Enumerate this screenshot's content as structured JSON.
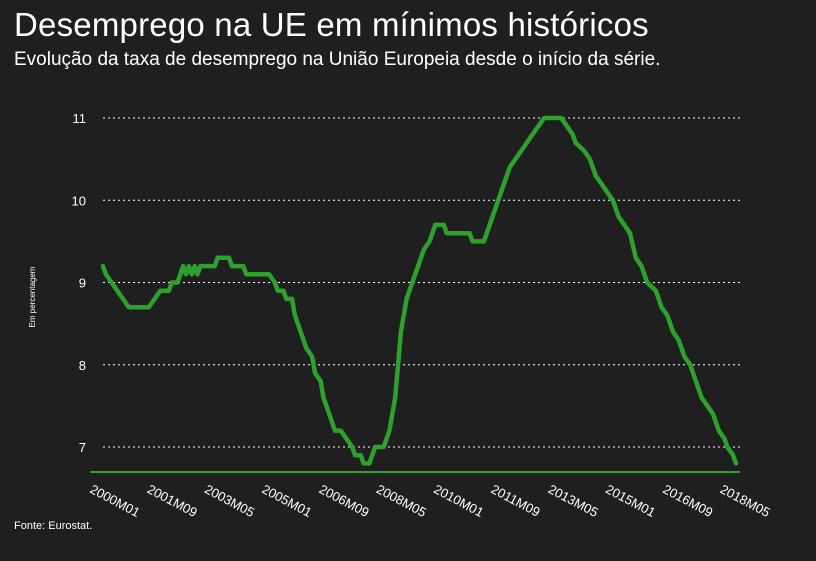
{
  "header": {
    "title": "Desemprego na UE em mínimos históricos",
    "subtitle": "Evolução da taxa de desemprego na União Europeia desde o início da série."
  },
  "footer": {
    "source": "Fonte: Eurostat."
  },
  "colors": {
    "background": "#1f1f1f",
    "line": "#2ea02e",
    "grid": "#ffffff",
    "text": "#ffffff"
  },
  "chart_data": {
    "type": "line",
    "title": "Desemprego na UE em mínimos históricos",
    "subtitle": "Evolução da taxa de desemprego na União Europeia desde o início da série.",
    "ylabel": "Em percentagem",
    "xlabel": "",
    "ylim": [
      6.7,
      11.1
    ],
    "yticks": [
      7,
      8,
      9,
      10,
      11
    ],
    "grid": "horizontal dotted",
    "xticks": [
      "2000M01",
      "2001M09",
      "2003M05",
      "2005M01",
      "2006M09",
      "2008M05",
      "2010M01",
      "2011M09",
      "2013M05",
      "2015M01",
      "2016M09",
      "2018M05"
    ],
    "x_start": "2000M01",
    "x_end": "2018M06",
    "series": [
      {
        "name": "",
        "points": [
          [
            "2000M01",
            9.2
          ],
          [
            "2000M02",
            9.1
          ],
          [
            "2000M04",
            9.0
          ],
          [
            "2000M06",
            8.9
          ],
          [
            "2000M08",
            8.8
          ],
          [
            "2000M10",
            8.7
          ],
          [
            "2001M01",
            8.7
          ],
          [
            "2001M05",
            8.7
          ],
          [
            "2001M07",
            8.8
          ],
          [
            "2001M09",
            8.9
          ],
          [
            "2001M12",
            8.9
          ],
          [
            "2002M01",
            9.0
          ],
          [
            "2002M03",
            9.0
          ],
          [
            "2002M04",
            9.1
          ],
          [
            "2002M05",
            9.2
          ],
          [
            "2002M06",
            9.1
          ],
          [
            "2002M07",
            9.2
          ],
          [
            "2002M08",
            9.1
          ],
          [
            "2002M09",
            9.2
          ],
          [
            "2002M10",
            9.1
          ],
          [
            "2002M11",
            9.2
          ],
          [
            "2003M04",
            9.2
          ],
          [
            "2003M05",
            9.3
          ],
          [
            "2003M09",
            9.3
          ],
          [
            "2003M10",
            9.2
          ],
          [
            "2004M02",
            9.2
          ],
          [
            "2004M03",
            9.1
          ],
          [
            "2004M11",
            9.1
          ],
          [
            "2005M01",
            9.0
          ],
          [
            "2005M02",
            8.9
          ],
          [
            "2005M04",
            8.9
          ],
          [
            "2005M05",
            8.8
          ],
          [
            "2005M07",
            8.8
          ],
          [
            "2005M08",
            8.6
          ],
          [
            "2005M10",
            8.4
          ],
          [
            "2005M12",
            8.2
          ],
          [
            "2006M02",
            8.1
          ],
          [
            "2006M03",
            7.9
          ],
          [
            "2006M05",
            7.8
          ],
          [
            "2006M06",
            7.6
          ],
          [
            "2006M08",
            7.4
          ],
          [
            "2006M10",
            7.2
          ],
          [
            "2006M12",
            7.2
          ],
          [
            "2007M02",
            7.1
          ],
          [
            "2007M04",
            7.0
          ],
          [
            "2007M05",
            6.9
          ],
          [
            "2007M07",
            6.9
          ],
          [
            "2007M08",
            6.8
          ],
          [
            "2007M10",
            6.8
          ],
          [
            "2007M11",
            6.9
          ],
          [
            "2007M12",
            7.0
          ],
          [
            "2008M03",
            7.0
          ],
          [
            "2008M05",
            7.2
          ],
          [
            "2008M07",
            7.6
          ],
          [
            "2008M09",
            8.4
          ],
          [
            "2008M11",
            8.8
          ],
          [
            "2009M01",
            9.0
          ],
          [
            "2009M03",
            9.2
          ],
          [
            "2009M05",
            9.4
          ],
          [
            "2009M07",
            9.5
          ],
          [
            "2009M09",
            9.7
          ],
          [
            "2009M12",
            9.7
          ],
          [
            "2010M01",
            9.6
          ],
          [
            "2010M09",
            9.6
          ],
          [
            "2010M10",
            9.5
          ],
          [
            "2011M02",
            9.5
          ],
          [
            "2011M04",
            9.7
          ],
          [
            "2011M06",
            9.9
          ],
          [
            "2011M08",
            10.1
          ],
          [
            "2011M09",
            10.2
          ],
          [
            "2011M11",
            10.4
          ],
          [
            "2012M01",
            10.5
          ],
          [
            "2012M03",
            10.6
          ],
          [
            "2012M05",
            10.7
          ],
          [
            "2012M07",
            10.8
          ],
          [
            "2012M09",
            10.9
          ],
          [
            "2012M11",
            11.0
          ],
          [
            "2013M05",
            11.0
          ],
          [
            "2013M07",
            10.9
          ],
          [
            "2013M09",
            10.8
          ],
          [
            "2013M10",
            10.7
          ],
          [
            "2014M01",
            10.6
          ],
          [
            "2014M03",
            10.5
          ],
          [
            "2014M05",
            10.3
          ],
          [
            "2014M07",
            10.2
          ],
          [
            "2014M09",
            10.1
          ],
          [
            "2014M11",
            10.0
          ],
          [
            "2015M01",
            9.8
          ],
          [
            "2015M03",
            9.7
          ],
          [
            "2015M05",
            9.6
          ],
          [
            "2015M07",
            9.3
          ],
          [
            "2015M09",
            9.2
          ],
          [
            "2015M11",
            9.0
          ],
          [
            "2016M02",
            8.9
          ],
          [
            "2016M04",
            8.7
          ],
          [
            "2016M06",
            8.6
          ],
          [
            "2016M08",
            8.4
          ],
          [
            "2016M10",
            8.3
          ],
          [
            "2016M12",
            8.1
          ],
          [
            "2017M02",
            8.0
          ],
          [
            "2017M04",
            7.8
          ],
          [
            "2017M06",
            7.6
          ],
          [
            "2017M08",
            7.5
          ],
          [
            "2017M10",
            7.4
          ],
          [
            "2017M12",
            7.2
          ],
          [
            "2018M02",
            7.1
          ],
          [
            "2018M03",
            7.0
          ],
          [
            "2018M05",
            6.9
          ],
          [
            "2018M06",
            6.8
          ]
        ]
      }
    ]
  }
}
